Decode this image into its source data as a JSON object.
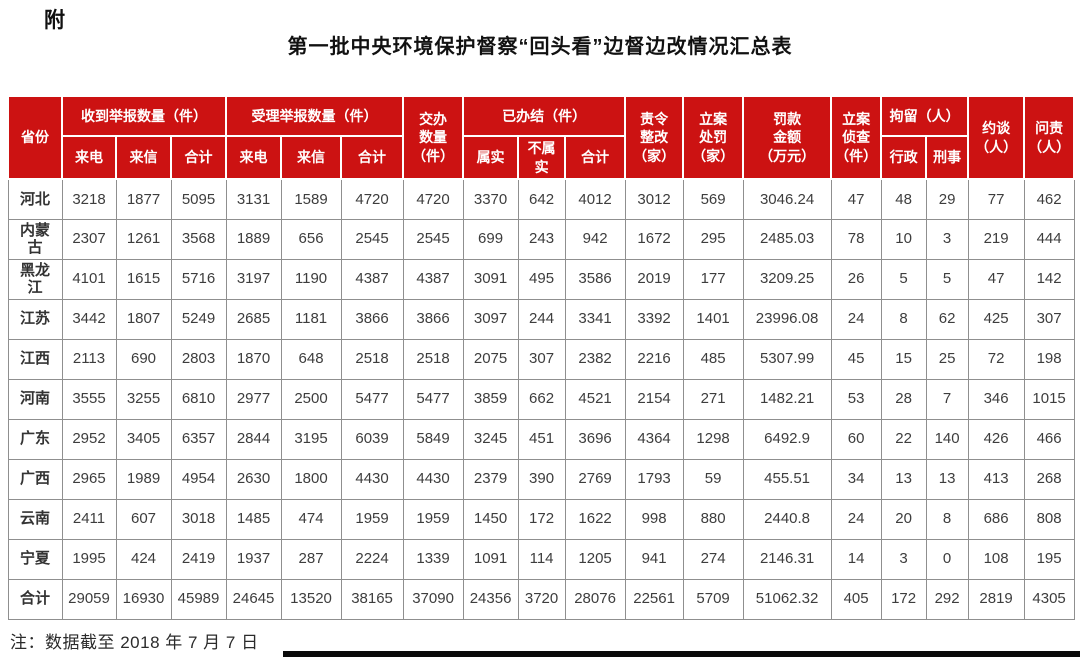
{
  "page": {
    "corner_label": "附",
    "title": "第一批中央环境保护督察“回头看”边督边改情况汇总表",
    "note": "注：数据截至 2018 年 7 月 7 日"
  },
  "colors": {
    "header_bg": "#cc1212",
    "header_text": "#ffffff",
    "grid_border": "#8f8f8f",
    "bottom_bar": "#0a0a0a"
  },
  "table": {
    "header": {
      "province": "省份",
      "received_group": "收到举报数量（件）",
      "accepted_group": "受理举报数量（件）",
      "assigned": "交办\n数量\n（件）",
      "completed_group": "已办结（件）",
      "rectification": "责令\n整改\n（家）",
      "case_punishment": "立案\n处罚\n（家）",
      "fine_amount": "罚款\n金额\n（万元）",
      "investigation": "立案\n侦查\n（件）",
      "detention_group": "拘留（人）",
      "interview": "约谈\n（人）",
      "accountability": "问责\n（人）",
      "sub": {
        "calls1": "来电",
        "letters1": "来信",
        "total1": "合计",
        "calls2": "来电",
        "letters2": "来信",
        "total2": "合计",
        "verified": "属实",
        "unverified": "不属\n实",
        "total3": "合计",
        "administrative": "行政",
        "criminal": "刑事"
      }
    },
    "rows": [
      {
        "province": "河北",
        "cells": [
          "3218",
          "1877",
          "5095",
          "3131",
          "1589",
          "4720",
          "4720",
          "3370",
          "642",
          "4012",
          "3012",
          "569",
          "3046.24",
          "47",
          "48",
          "29",
          "77",
          "462"
        ]
      },
      {
        "province": "内蒙\n古",
        "cells": [
          "2307",
          "1261",
          "3568",
          "1889",
          "656",
          "2545",
          "2545",
          "699",
          "243",
          "942",
          "1672",
          "295",
          "2485.03",
          "78",
          "10",
          "3",
          "219",
          "444"
        ]
      },
      {
        "province": "黑龙\n江",
        "cells": [
          "4101",
          "1615",
          "5716",
          "3197",
          "1190",
          "4387",
          "4387",
          "3091",
          "495",
          "3586",
          "2019",
          "177",
          "3209.25",
          "26",
          "5",
          "5",
          "47",
          "142"
        ]
      },
      {
        "province": "江苏",
        "cells": [
          "3442",
          "1807",
          "5249",
          "2685",
          "1181",
          "3866",
          "3866",
          "3097",
          "244",
          "3341",
          "3392",
          "1401",
          "23996.08",
          "24",
          "8",
          "62",
          "425",
          "307"
        ]
      },
      {
        "province": "江西",
        "cells": [
          "2113",
          "690",
          "2803",
          "1870",
          "648",
          "2518",
          "2518",
          "2075",
          "307",
          "2382",
          "2216",
          "485",
          "5307.99",
          "45",
          "15",
          "25",
          "72",
          "198"
        ]
      },
      {
        "province": "河南",
        "cells": [
          "3555",
          "3255",
          "6810",
          "2977",
          "2500",
          "5477",
          "5477",
          "3859",
          "662",
          "4521",
          "2154",
          "271",
          "1482.21",
          "53",
          "28",
          "7",
          "346",
          "1015"
        ]
      },
      {
        "province": "广东",
        "cells": [
          "2952",
          "3405",
          "6357",
          "2844",
          "3195",
          "6039",
          "5849",
          "3245",
          "451",
          "3696",
          "4364",
          "1298",
          "6492.9",
          "60",
          "22",
          "140",
          "426",
          "466"
        ]
      },
      {
        "province": "广西",
        "cells": [
          "2965",
          "1989",
          "4954",
          "2630",
          "1800",
          "4430",
          "4430",
          "2379",
          "390",
          "2769",
          "1793",
          "59",
          "455.51",
          "34",
          "13",
          "13",
          "413",
          "268"
        ]
      },
      {
        "province": "云南",
        "cells": [
          "2411",
          "607",
          "3018",
          "1485",
          "474",
          "1959",
          "1959",
          "1450",
          "172",
          "1622",
          "998",
          "880",
          "2440.8",
          "24",
          "20",
          "8",
          "686",
          "808"
        ]
      },
      {
        "province": "宁夏",
        "cells": [
          "1995",
          "424",
          "2419",
          "1937",
          "287",
          "2224",
          "1339",
          "1091",
          "114",
          "1205",
          "941",
          "274",
          "2146.31",
          "14",
          "3",
          "0",
          "108",
          "195"
        ]
      }
    ],
    "total_row": {
      "province": "合计",
      "cells": [
        "29059",
        "16930",
        "45989",
        "24645",
        "13520",
        "38165",
        "37090",
        "24356",
        "3720",
        "28076",
        "22561",
        "5709",
        "51062.32",
        "405",
        "172",
        "292",
        "2819",
        "4305"
      ]
    }
  }
}
